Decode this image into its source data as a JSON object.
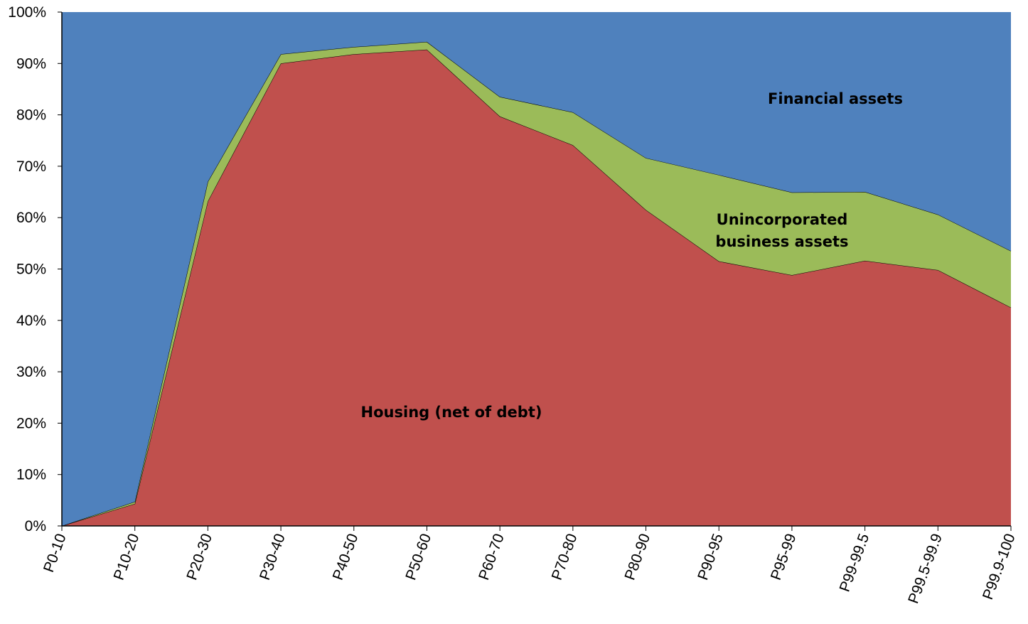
{
  "chart_data": {
    "type": "stacked-area",
    "categories": [
      "P0-10",
      "P10-20",
      "P20-30",
      "P30-40",
      "P40-50",
      "P50-60",
      "P60-70",
      "P70-80",
      "P80-90",
      "P90-95",
      "P95-99",
      "P99-99.5",
      "P99.5-99.9",
      "P99.9-100"
    ],
    "series": [
      {
        "name": "Housing (net of debt)",
        "color": "#c0504d",
        "values": [
          0,
          4.3,
          63.2,
          90,
          91.8,
          92.7,
          79.7,
          74.1,
          61.5,
          51.5,
          48.8,
          51.6,
          49.8,
          42.5
        ]
      },
      {
        "name": "Unincorporated business assets",
        "color": "#9bbb59",
        "values": [
          0,
          0.4,
          3.8,
          1.8,
          1.4,
          1.5,
          3.8,
          6.4,
          10.1,
          16.8,
          16.1,
          13.4,
          10.8,
          11.0
        ]
      },
      {
        "name": "Financial assets",
        "color": "#4f81bd",
        "values": [
          100,
          95.3,
          33,
          8.2,
          6.8,
          5.8,
          16.5,
          19.5,
          28.4,
          31.7,
          35.1,
          35,
          39.4,
          46.5
        ]
      }
    ],
    "ylim": [
      0,
      100
    ],
    "yticks": [
      {
        "value": 0,
        "label": "0%"
      },
      {
        "value": 10,
        "label": "10%"
      },
      {
        "value": 20,
        "label": "20%"
      },
      {
        "value": 30,
        "label": "30%"
      },
      {
        "value": 40,
        "label": "40%"
      },
      {
        "value": 50,
        "label": "50%"
      },
      {
        "value": 60,
        "label": "60%"
      },
      {
        "value": 70,
        "label": "70%"
      },
      {
        "value": 80,
        "label": "80%"
      },
      {
        "value": 90,
        "label": "90%"
      },
      {
        "value": 100,
        "label": "100%"
      }
    ]
  }
}
